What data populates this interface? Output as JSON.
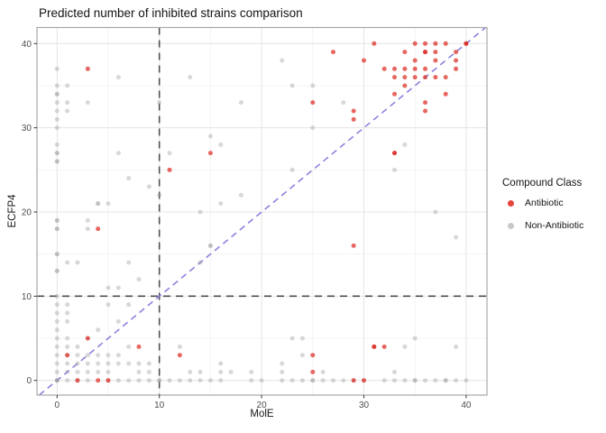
{
  "title": "Predicted number of inhibited strains comparison",
  "legend": {
    "title": "Compound Class",
    "items": [
      {
        "label": "Antibiotic",
        "color": "#e8443e"
      },
      {
        "label": "Non-Antibiotic",
        "color": "#c9c9c9"
      }
    ]
  },
  "axes": {
    "x_ticks": [
      0,
      10,
      20,
      30,
      40
    ],
    "y_ticks": [
      0,
      10,
      20,
      30,
      40
    ]
  },
  "style": {
    "major_grid_color": "#e4e4e4",
    "minor_grid_color": "#f1f1f1",
    "panel_border_color": "#a8a8a8",
    "ref_line_color": "#4f4f4f",
    "diagonal_color": "#7d76db",
    "tick_label_color": "#4d4d4d"
  },
  "chart_data": {
    "type": "scatter",
    "title": "Predicted number of inhibited strains comparison",
    "xlabel": "MolE",
    "ylabel": "ECFP4",
    "xlim": [
      -2,
      42
    ],
    "ylim": [
      -1.8,
      41.9
    ],
    "grid": "on",
    "legend_position": "right",
    "minor_gridlines": [
      5,
      15,
      25,
      35
    ],
    "reference_lines": {
      "vertical_x": 10,
      "horizontal_y": 10,
      "diagonal": "y = x"
    },
    "series": [
      {
        "name": "Antibiotic",
        "color": "#dd2c24",
        "opacity": 0.72,
        "points": [
          [
            2,
            0
          ],
          [
            4,
            0
          ],
          [
            5,
            0
          ],
          [
            29,
            0
          ],
          [
            30,
            0
          ],
          [
            25,
            1
          ],
          [
            1,
            3
          ],
          [
            12,
            3
          ],
          [
            25,
            3
          ],
          [
            8,
            4
          ],
          [
            31,
            4
          ],
          [
            31,
            4
          ],
          [
            32,
            4
          ],
          [
            3,
            5
          ],
          [
            29,
            16
          ],
          [
            4,
            18
          ],
          [
            11,
            25
          ],
          [
            15,
            27
          ],
          [
            33,
            27
          ],
          [
            33,
            27
          ],
          [
            29,
            31
          ],
          [
            29,
            32
          ],
          [
            36,
            32
          ],
          [
            25,
            33
          ],
          [
            36,
            33
          ],
          [
            33,
            34
          ],
          [
            38,
            34
          ],
          [
            34,
            35
          ],
          [
            33,
            36
          ],
          [
            34,
            36
          ],
          [
            35,
            36
          ],
          [
            36,
            36
          ],
          [
            37,
            36
          ],
          [
            38,
            36
          ],
          [
            3,
            37
          ],
          [
            32,
            37
          ],
          [
            33,
            37
          ],
          [
            34,
            37
          ],
          [
            35,
            37
          ],
          [
            36,
            37
          ],
          [
            39,
            37
          ],
          [
            30,
            38
          ],
          [
            35,
            38
          ],
          [
            37,
            38
          ],
          [
            39,
            38
          ],
          [
            27,
            39
          ],
          [
            34,
            39
          ],
          [
            36,
            39
          ],
          [
            36,
            39
          ],
          [
            37,
            39
          ],
          [
            39,
            39
          ],
          [
            31,
            40
          ],
          [
            35,
            40
          ],
          [
            36,
            40
          ],
          [
            37,
            40
          ],
          [
            38,
            40
          ],
          [
            40,
            40
          ],
          [
            40,
            40
          ]
        ]
      },
      {
        "name": "Non-Antibiotic",
        "color": "#9e9e9e",
        "opacity": 0.4,
        "points": [
          [
            0,
            0
          ],
          [
            0,
            0
          ],
          [
            0,
            0
          ],
          [
            1,
            0
          ],
          [
            2,
            0
          ],
          [
            3,
            0
          ],
          [
            5,
            0
          ],
          [
            6,
            0
          ],
          [
            7,
            0
          ],
          [
            8,
            0
          ],
          [
            9,
            0
          ],
          [
            10,
            0
          ],
          [
            10,
            0
          ],
          [
            11,
            0
          ],
          [
            12,
            0
          ],
          [
            13,
            0
          ],
          [
            14,
            0
          ],
          [
            15,
            0
          ],
          [
            16,
            0
          ],
          [
            19,
            0
          ],
          [
            20,
            0
          ],
          [
            22,
            0
          ],
          [
            23,
            0
          ],
          [
            24,
            0
          ],
          [
            25,
            0
          ],
          [
            25,
            0
          ],
          [
            26,
            0
          ],
          [
            27,
            0
          ],
          [
            28,
            0
          ],
          [
            29,
            0
          ],
          [
            30,
            0
          ],
          [
            32,
            0
          ],
          [
            33,
            0
          ],
          [
            34,
            0
          ],
          [
            35,
            0
          ],
          [
            35,
            0
          ],
          [
            36,
            0
          ],
          [
            37,
            0
          ],
          [
            38,
            0
          ],
          [
            38,
            0
          ],
          [
            39,
            0
          ],
          [
            40,
            0
          ],
          [
            0,
            1
          ],
          [
            1,
            1
          ],
          [
            2,
            1
          ],
          [
            3,
            1
          ],
          [
            4,
            1
          ],
          [
            5,
            1
          ],
          [
            8,
            1
          ],
          [
            9,
            1
          ],
          [
            13,
            1
          ],
          [
            14,
            1
          ],
          [
            16,
            1
          ],
          [
            17,
            1
          ],
          [
            19,
            1
          ],
          [
            22,
            1
          ],
          [
            26,
            1
          ],
          [
            33,
            1
          ],
          [
            0,
            2
          ],
          [
            1,
            2
          ],
          [
            2,
            2
          ],
          [
            3,
            2
          ],
          [
            4,
            2
          ],
          [
            5,
            2
          ],
          [
            6,
            2
          ],
          [
            7,
            2
          ],
          [
            8,
            2
          ],
          [
            9,
            2
          ],
          [
            16,
            2
          ],
          [
            22,
            2
          ],
          [
            0,
            3
          ],
          [
            1,
            3
          ],
          [
            2,
            3
          ],
          [
            3,
            3
          ],
          [
            4,
            3
          ],
          [
            5,
            3
          ],
          [
            6,
            3
          ],
          [
            24,
            3
          ],
          [
            0,
            4
          ],
          [
            1,
            4
          ],
          [
            2,
            4
          ],
          [
            7,
            4
          ],
          [
            12,
            4
          ],
          [
            34,
            4
          ],
          [
            39,
            4
          ],
          [
            0,
            5
          ],
          [
            1,
            5
          ],
          [
            3,
            5
          ],
          [
            23,
            5
          ],
          [
            24,
            5
          ],
          [
            35,
            5
          ],
          [
            0,
            6
          ],
          [
            4,
            6
          ],
          [
            0,
            7
          ],
          [
            1,
            7
          ],
          [
            6,
            7
          ],
          [
            0,
            8
          ],
          [
            1,
            8
          ],
          [
            0,
            9
          ],
          [
            1,
            9
          ],
          [
            5,
            9
          ],
          [
            7,
            9
          ],
          [
            0,
            10
          ],
          [
            5,
            11
          ],
          [
            6,
            11
          ],
          [
            8,
            12
          ],
          [
            0,
            13
          ],
          [
            0,
            13
          ],
          [
            1,
            14
          ],
          [
            2,
            14
          ],
          [
            7,
            14
          ],
          [
            14,
            14
          ],
          [
            0,
            15
          ],
          [
            0,
            15
          ],
          [
            15,
            16
          ],
          [
            15,
            16
          ],
          [
            39,
            17
          ],
          [
            0,
            18
          ],
          [
            0,
            18
          ],
          [
            3,
            18
          ],
          [
            0,
            19
          ],
          [
            0,
            19
          ],
          [
            3,
            19
          ],
          [
            14,
            20
          ],
          [
            37,
            20
          ],
          [
            4,
            21
          ],
          [
            4,
            21
          ],
          [
            5,
            21
          ],
          [
            16,
            21
          ],
          [
            10,
            22
          ],
          [
            18,
            22
          ],
          [
            9,
            23
          ],
          [
            7,
            24
          ],
          [
            23,
            25
          ],
          [
            33,
            25
          ],
          [
            0,
            26
          ],
          [
            0,
            26
          ],
          [
            0,
            27
          ],
          [
            0,
            27
          ],
          [
            6,
            27
          ],
          [
            11,
            27
          ],
          [
            0,
            28
          ],
          [
            16,
            28
          ],
          [
            34,
            28
          ],
          [
            15,
            29
          ],
          [
            0,
            30
          ],
          [
            25,
            30
          ],
          [
            0,
            31
          ],
          [
            0,
            32
          ],
          [
            1,
            32
          ],
          [
            0,
            33
          ],
          [
            1,
            33
          ],
          [
            3,
            33
          ],
          [
            10,
            33
          ],
          [
            18,
            33
          ],
          [
            28,
            33
          ],
          [
            0,
            34
          ],
          [
            0,
            34
          ],
          [
            0,
            35
          ],
          [
            1,
            35
          ],
          [
            23,
            35
          ],
          [
            25,
            35
          ],
          [
            6,
            36
          ],
          [
            13,
            36
          ],
          [
            0,
            37
          ],
          [
            22,
            38
          ]
        ]
      }
    ]
  }
}
